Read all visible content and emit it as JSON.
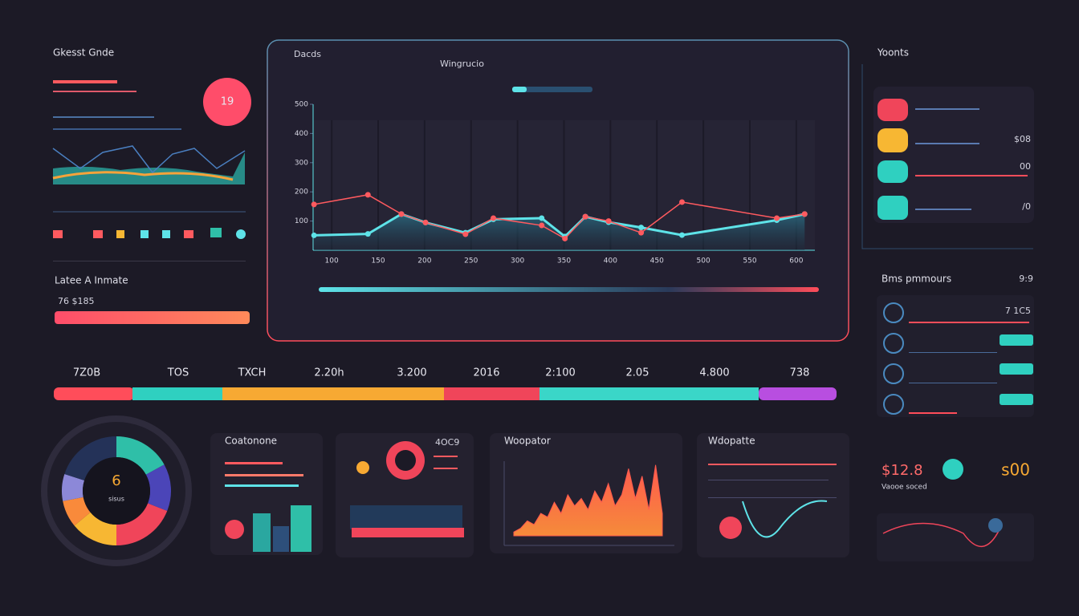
{
  "left_panel": {
    "title": "Gkesst Gnde",
    "badge": "19",
    "stat_title": "Latee A Inmate",
    "stat_value": "76 $185"
  },
  "main_panel": {
    "header": "Dacds"
  },
  "timeline": {
    "labels": [
      "7Z0B",
      "TOS",
      "TXCH",
      "2.20h",
      "3.200",
      "2016",
      "2:100",
      "2.05",
      "4.800",
      "738"
    ]
  },
  "cards": {
    "first": "Coatonone",
    "second": "4OC9",
    "fourth": "Wdopatte"
  },
  "right_top": {
    "title": "Yoonts",
    "values": [
      "$08",
      "00",
      "/0"
    ]
  },
  "right_mid": {
    "title": "Bms pmmours",
    "corner": "9:9",
    "value": "7 1C5"
  },
  "bottom_right": {
    "value": "$12.8",
    "caption": "Vaooe soced",
    "badge": "s00"
  },
  "chart_data": [
    {
      "type": "line",
      "title": "Wingrucio",
      "x": [
        81,
        139,
        175,
        201,
        244,
        274,
        326,
        351,
        373,
        398,
        433,
        477,
        579,
        609
      ],
      "series": [
        {
          "color": "#5ee3e8",
          "values": [
            51,
            56,
            124,
            95,
            60,
            106,
            110,
            47,
            115,
            96,
            78,
            52,
            103,
            124
          ]
        },
        {
          "color": "#ff5a5f",
          "values": [
            157,
            190,
            124,
            95,
            55,
            110,
            85,
            40,
            115,
            100,
            60,
            165,
            110,
            124
          ]
        }
      ],
      "xlim": [
        80,
        620
      ],
      "xticks": [
        100,
        150,
        200,
        250,
        300,
        350,
        400,
        450,
        500,
        550,
        600
      ],
      "ylim": [
        0,
        500
      ],
      "yticks": [
        100,
        200,
        300,
        400,
        500
      ],
      "grid": true
    },
    {
      "type": "pie",
      "label": "6",
      "sublabel": "sisus",
      "values": [
        17,
        14,
        19,
        14,
        8,
        8,
        20
      ],
      "colors": [
        "#2fbfa8",
        "#4b45b8",
        "#f0455a",
        "#f7b733",
        "#f98a3b",
        "#8c88d8",
        "#243258"
      ]
    },
    {
      "type": "area",
      "title": "Woopator",
      "color": "#ff5a4e",
      "values": [
        5,
        10,
        20,
        15,
        30,
        25,
        45,
        30,
        55,
        40,
        50,
        35,
        60,
        45,
        70,
        40,
        55,
        90,
        50,
        80,
        35,
        95,
        30
      ],
      "ylim": [
        0,
        100
      ]
    }
  ]
}
